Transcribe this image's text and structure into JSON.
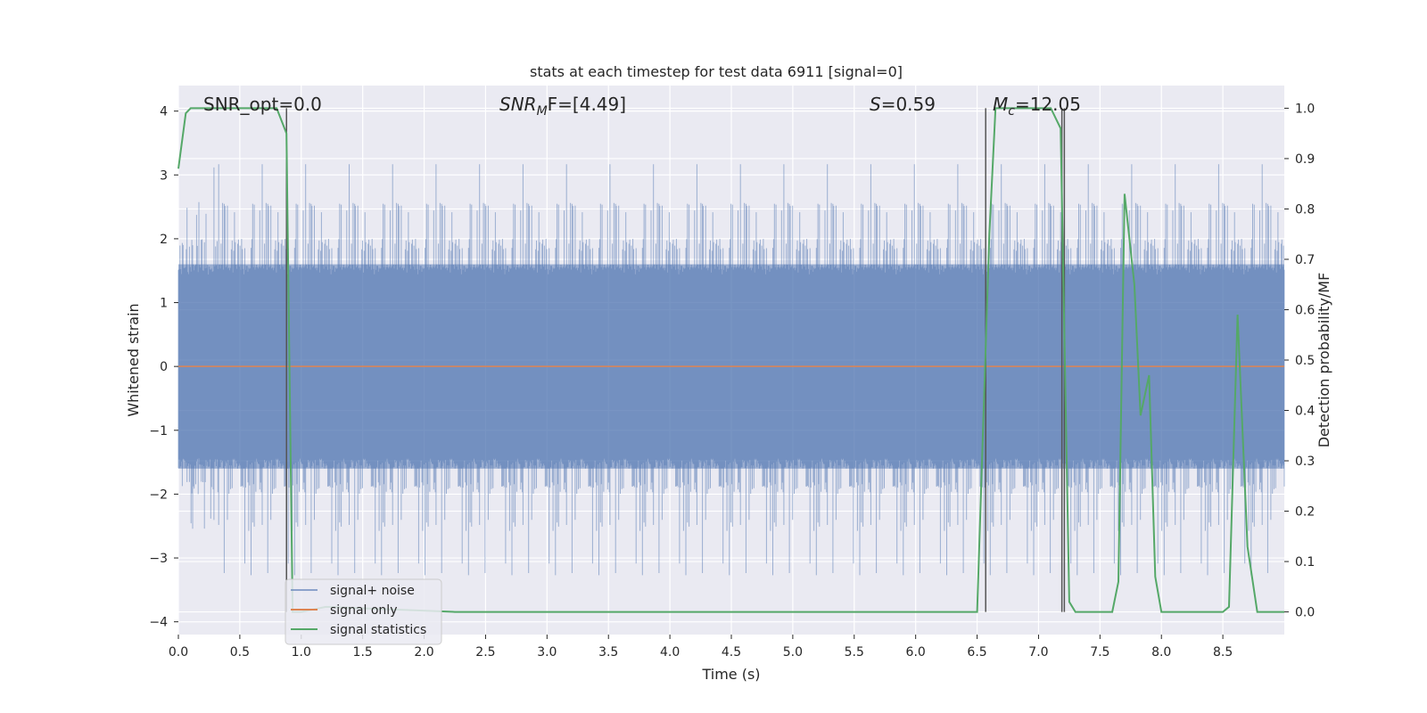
{
  "chart_data": {
    "type": "line",
    "title": "stats at each timestep for test data 6911 [signal=0]",
    "xlabel": "Time (s)",
    "ylabel_left": "Whitened strain",
    "ylabel_right": "Detection probability/MF",
    "xlim": [
      0,
      9
    ],
    "ylim_left": [
      -4.2,
      4.4
    ],
    "ylim_right": [
      -0.045,
      1.045
    ],
    "xticks": [
      "0.0",
      "0.5",
      "1.0",
      "1.5",
      "2.0",
      "2.5",
      "3.0",
      "3.5",
      "4.0",
      "4.5",
      "5.0",
      "5.5",
      "6.0",
      "6.5",
      "7.0",
      "7.5",
      "8.0",
      "8.5"
    ],
    "yticks_left": [
      "4",
      "3",
      "2",
      "1",
      "0",
      "−1",
      "−2",
      "−3",
      "−4"
    ],
    "yticks_right": [
      "1.0",
      "0.9",
      "0.8",
      "0.7",
      "0.6",
      "0.5",
      "0.4",
      "0.3",
      "0.2",
      "0.1",
      "0.0"
    ],
    "grid": true,
    "legend_position": "lower-left",
    "annotations": {
      "snr_opt": "SNR_opt=0.0",
      "snr_mf_a": "SNR",
      "snr_mf_sub": "M",
      "snr_mf_b": "F=[4.49]",
      "s_a": "S",
      "s_b": "=0.59",
      "mc_a": "M",
      "mc_sub": "c",
      "mc_b": "=12.05"
    },
    "series": [
      {
        "name": "signal+ noise",
        "color": "#4c72b0",
        "envelope_pos": [
          1.6,
          2.0,
          2.6,
          3.3,
          4.0
        ],
        "envelope_neg": [
          -1.6,
          -2.0,
          -2.6,
          -3.3,
          -3.7
        ]
      },
      {
        "name": "signal only",
        "color": "#dd8452",
        "x": [
          0,
          9
        ],
        "y": [
          0,
          0
        ]
      },
      {
        "name": "signal statistics",
        "color": "#55a868",
        "x": [
          0.0,
          0.06,
          0.1,
          0.2,
          0.5,
          0.8,
          0.88,
          0.93,
          1.0,
          1.2,
          2.25,
          6.5,
          6.6,
          6.65,
          7.1,
          7.18,
          7.25,
          7.3,
          7.6,
          7.65,
          7.7,
          7.78,
          7.83,
          7.9,
          7.95,
          8.0,
          8.5,
          8.55,
          8.62,
          8.7,
          8.78,
          9.0
        ],
        "y": [
          0.88,
          0.99,
          1.0,
          1.0,
          1.0,
          1.0,
          0.95,
          0.0,
          0.0,
          0.01,
          0.0,
          0.0,
          0.75,
          1.0,
          1.0,
          0.96,
          0.02,
          0.0,
          0.0,
          0.06,
          0.83,
          0.65,
          0.39,
          0.47,
          0.07,
          0.0,
          0.0,
          0.01,
          0.59,
          0.13,
          0.0,
          0.0
        ]
      }
    ],
    "vlines_x": [
      0.88,
      6.57,
      7.19,
      7.21
    ]
  }
}
